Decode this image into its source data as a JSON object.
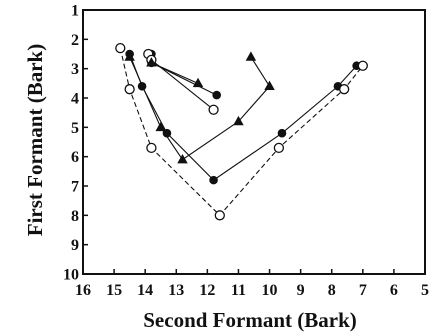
{
  "chart_data": {
    "type": "scatter",
    "title": "",
    "xlabel": "Second Formant (Bark)",
    "ylabel": "First Formant (Bark)",
    "xlim": [
      16,
      5
    ],
    "ylim": [
      10,
      1
    ],
    "x_reversed": true,
    "y_reversed": true,
    "x_ticks": [
      "16",
      "15",
      "14",
      "13",
      "12",
      "11",
      "10",
      "9",
      "8",
      "7",
      "6",
      "5"
    ],
    "y_ticks": [
      "1",
      "2",
      "3",
      "4",
      "5",
      "6",
      "7",
      "8",
      "9",
      "10"
    ],
    "grid": false,
    "legend": "none",
    "series": [
      {
        "marker": "filled-circle",
        "line": "solid",
        "color": "#111111",
        "points": [
          [
            14.5,
            2.5
          ],
          [
            14.1,
            3.6
          ],
          [
            13.3,
            5.2
          ],
          [
            11.8,
            6.8
          ],
          [
            9.6,
            5.2
          ],
          [
            7.8,
            3.6
          ],
          [
            7.2,
            2.9
          ]
        ]
      },
      {
        "marker": "open-circle",
        "line": "dashed",
        "color": "#111111",
        "points": [
          [
            14.8,
            2.3
          ],
          [
            14.5,
            3.7
          ],
          [
            13.8,
            5.7
          ],
          [
            11.6,
            8.0
          ],
          [
            9.7,
            5.7
          ],
          [
            7.6,
            3.7
          ],
          [
            7.0,
            2.9
          ]
        ]
      },
      {
        "marker": "filled-circle",
        "line": "solid",
        "color": "#111111",
        "points": [
          [
            13.8,
            2.5
          ],
          [
            13.8,
            2.8
          ],
          [
            11.7,
            3.9
          ]
        ]
      },
      {
        "marker": "open-circle",
        "line": "solid",
        "color": "#111111",
        "points": [
          [
            13.9,
            2.5
          ],
          [
            13.8,
            2.7
          ],
          [
            11.8,
            4.4
          ]
        ]
      },
      {
        "marker": "filled-triangle",
        "line": "solid",
        "color": "#111111",
        "points": [
          [
            14.5,
            2.6
          ],
          [
            13.5,
            5.0
          ],
          [
            12.8,
            6.1
          ],
          [
            11.0,
            4.8
          ],
          [
            10.0,
            3.6
          ],
          [
            10.6,
            2.6
          ]
        ]
      },
      {
        "marker": "filled-triangle",
        "line": "solid",
        "color": "#111111",
        "points": [
          [
            13.8,
            2.8
          ],
          [
            12.3,
            3.5
          ]
        ]
      }
    ]
  }
}
